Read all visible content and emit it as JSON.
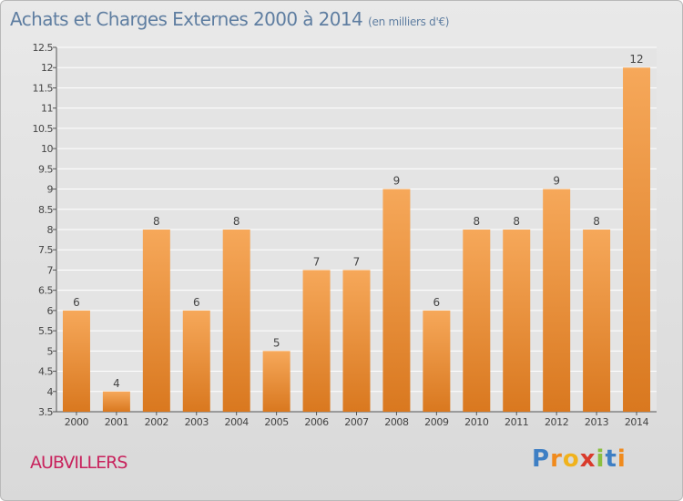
{
  "chart_data": {
    "type": "bar",
    "title": "Achats et Charges Externes 2000 à 2014",
    "subtitle": "(en milliers d'€)",
    "categories": [
      "2000",
      "2001",
      "2002",
      "2003",
      "2004",
      "2005",
      "2006",
      "2007",
      "2008",
      "2009",
      "2010",
      "2011",
      "2012",
      "2013",
      "2014"
    ],
    "values": [
      6,
      4,
      8,
      6,
      8,
      5,
      7,
      7,
      9,
      6,
      8,
      8,
      9,
      8,
      12
    ],
    "ylim": [
      3.5,
      12.5
    ],
    "yticks": [
      "3.5",
      "4",
      "4.5",
      "5",
      "5.5",
      "6",
      "6.5",
      "7",
      "7.5",
      "8",
      "8.5",
      "9",
      "9.5",
      "10",
      "10.5",
      "11",
      "11.5",
      "12",
      "12.5"
    ],
    "grid": true,
    "bar_color_top": "#f6a85a",
    "bar_color_bottom": "#d9781f",
    "grid_color": "#ffffff",
    "title_color": "#5f7ea1"
  },
  "place": "AUBVILLERS",
  "logo": {
    "letters": [
      "P",
      "r",
      "o",
      "x",
      "i",
      "t",
      "i"
    ],
    "colors": [
      "#3e7fc4",
      "#f08a1c",
      "#f0b21c",
      "#d93a2b",
      "#8bbf3f",
      "#3e7fc4",
      "#f08a1c"
    ]
  }
}
